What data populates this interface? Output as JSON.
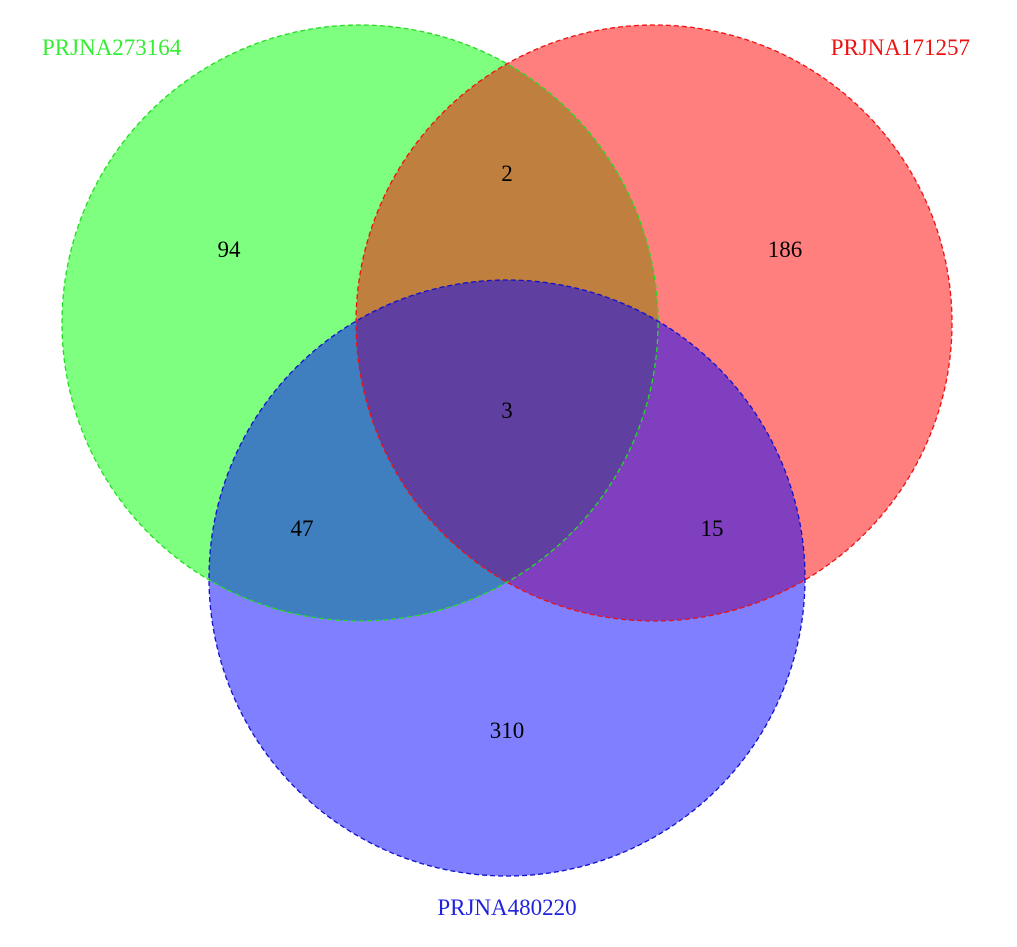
{
  "sets": [
    {
      "name": "PRJNA273164",
      "color": "#00ff00",
      "label_color": "#33ee33",
      "outline_color": "#22dd22"
    },
    {
      "name": "PRJNA171257",
      "color": "#ff0000",
      "label_color": "#ee1111",
      "outline_color": "#ee1111"
    },
    {
      "name": "PRJNA480220",
      "color": "#0000ff",
      "label_color": "#2222dd",
      "outline_color": "#1111cc"
    }
  ],
  "regions": {
    "only_PRJNA273164": "94",
    "only_PRJNA171257": "186",
    "only_PRJNA480220": "310",
    "PRJNA273164_and_PRJNA171257": "2",
    "PRJNA273164_and_PRJNA480220": "47",
    "PRJNA171257_and_PRJNA480220": "15",
    "all_three": "3"
  },
  "fill_opacity": 0.5
}
